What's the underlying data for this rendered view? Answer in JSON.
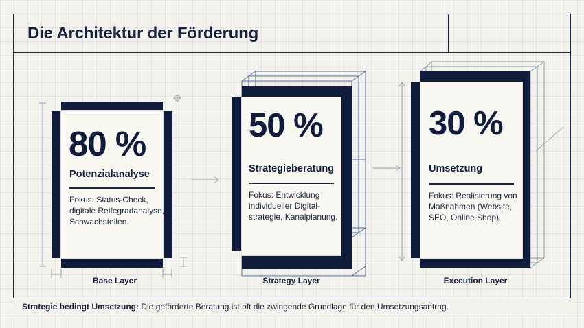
{
  "title": "Die Architektur der Förderung",
  "cards": [
    {
      "percent": "80 %",
      "name": "Potenzialanalyse",
      "focus": [
        "Fokus: Status-Check,",
        "digitale Reifegradanalyse,",
        "Schwachstellen."
      ],
      "layer": "Base Layer"
    },
    {
      "percent": "50 %",
      "name": "Strategieberatung",
      "focus": [
        "Fokus: Entwicklung",
        "individueller Digital-",
        "strategie, Kanalplanung."
      ],
      "layer": "Strategy Layer"
    },
    {
      "percent": "30 %",
      "name": "Umsetzung",
      "focus": [
        "Fokus: Realisierung von",
        "Maßnahmen (Website,",
        "SEO, Online Shop)."
      ],
      "layer": "Execution Layer"
    }
  ],
  "footer": {
    "bold": "Strategie bedingt Umsetzung:",
    "text": " Die geförderte Beratung ist oft die zwingende Grundlage für den Umsetzungsantrag."
  },
  "colors": {
    "navy": "#101c3c",
    "paper": "#f8f7f2",
    "background": "#f3f2ec"
  }
}
